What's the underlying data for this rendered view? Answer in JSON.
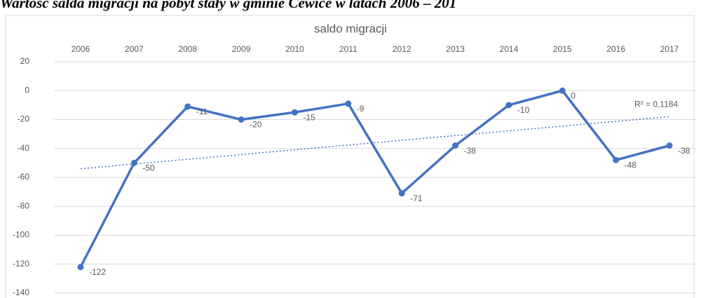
{
  "title": "Wartość salda migracji na pobyt stały w gminie Cewice w latach 2006 – 201",
  "chart_data": {
    "type": "line",
    "title": "saldo migracji",
    "categories": [
      "2006",
      "2007",
      "2008",
      "2009",
      "2010",
      "2011",
      "2012",
      "2013",
      "2014",
      "2015",
      "2016",
      "2017"
    ],
    "series": [
      {
        "name": "saldo migracji",
        "color": "#4472c4",
        "values": [
          -122,
          -50,
          -11,
          -20,
          -15,
          -9,
          -71,
          -38,
          -10,
          0,
          -48,
          -38
        ]
      }
    ],
    "ylim": [
      -140,
      20
    ],
    "yticks": [
      20,
      0,
      -20,
      -40,
      -60,
      -80,
      -100,
      -120,
      -140
    ],
    "grid": true,
    "trendline": {
      "color": "#4472c4",
      "values": [
        -54,
        -18
      ],
      "annotation": "R² = 0,1184"
    }
  }
}
